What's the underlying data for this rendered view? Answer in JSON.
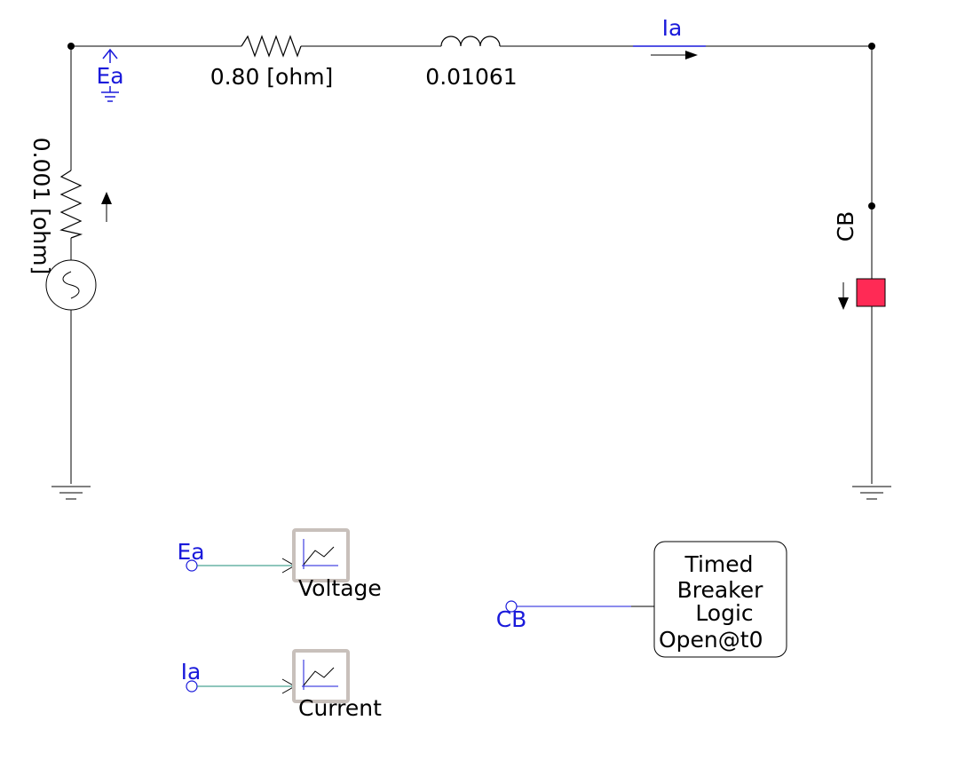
{
  "circuit": {
    "series_resistor_label": "0.80 [ohm]",
    "inductor_label": "0.01061",
    "source_resistor_label": "0.001 [ohm]",
    "current_label": "Ia",
    "voltage_node_label": "Ea",
    "breaker_label": "CB"
  },
  "meters": {
    "voltage": {
      "signal": "Ea",
      "label": "Voltage"
    },
    "current": {
      "signal": "Ia",
      "label": "Current"
    }
  },
  "breaker_logic": {
    "signal": "CB",
    "lines": [
      "Timed",
      "Breaker",
      "Logic",
      "Open@t0"
    ]
  },
  "colors": {
    "wire": "#000000",
    "signal": "#1a1adb",
    "breaker": "#ff2a55",
    "meter_frame": "#c8c0bb"
  }
}
